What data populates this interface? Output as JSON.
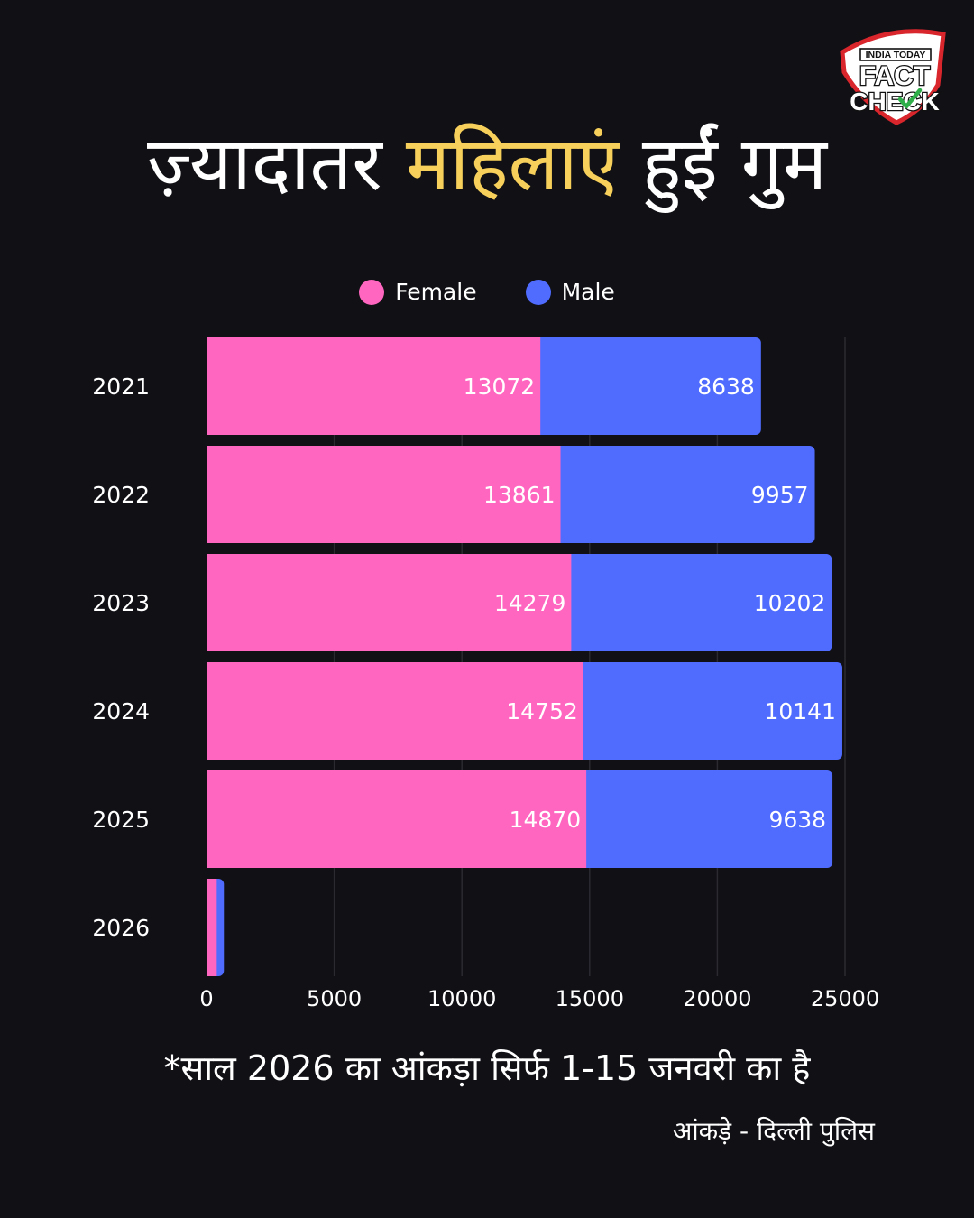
{
  "headline": {
    "part1": "ज़्यादातर ",
    "highlight": "महिलाएं",
    "part2": " हुईं गुम"
  },
  "logo": {
    "line1": "INDIA TODAY",
    "line2": "FACT",
    "line3": "CHECK",
    "icon": "check-mark-icon"
  },
  "colors": {
    "female": "#ff66c0",
    "male": "#4f6cff",
    "highlight": "#f6d05a",
    "background": "#111015"
  },
  "chart_data": {
    "type": "bar",
    "orientation": "horizontal",
    "stacked": true,
    "categories": [
      "2021",
      "2022",
      "2023",
      "2024",
      "2025",
      "2026"
    ],
    "series": [
      {
        "name": "Female",
        "color": "#ff66c0",
        "values": [
          13072,
          13861,
          14279,
          14752,
          14870,
          400
        ],
        "labels": [
          "13072",
          "13861",
          "14279",
          "14752",
          "14870",
          ""
        ]
      },
      {
        "name": "Male",
        "color": "#4f6cff",
        "values": [
          8638,
          9957,
          10202,
          10141,
          9638,
          280
        ],
        "labels": [
          "8638",
          "9957",
          "10202",
          "10141",
          "9638",
          ""
        ]
      }
    ],
    "xlim": [
      0,
      25000
    ],
    "xticks": [
      "0",
      "5000",
      "10000",
      "15000",
      "20000",
      "25000"
    ],
    "grid": true,
    "legend": "top-center"
  },
  "footnote": "*साल 2026 का आंकड़ा सिर्फ 1-15 जनवरी का है",
  "source": "आंकड़े - दिल्ली पुलिस"
}
